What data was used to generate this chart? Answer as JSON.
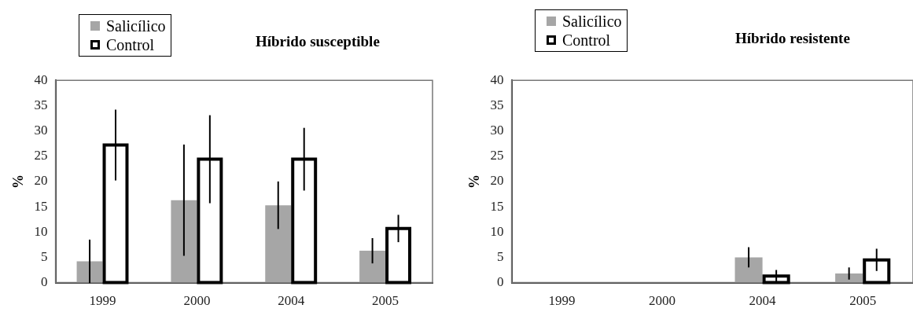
{
  "chart_data": [
    {
      "type": "bar",
      "title": "Híbrido susceptible",
      "ylabel": "%",
      "categories": [
        "1999",
        "2000",
        "2004",
        "2005"
      ],
      "ylim": [
        0,
        40
      ],
      "yticks": [
        0,
        5,
        10,
        15,
        20,
        25,
        30,
        35,
        40
      ],
      "grid": false,
      "legend": "top left",
      "series": [
        {
          "name": "Salicílico",
          "color": "#a6a6a6",
          "values": [
            4.2,
            16.3,
            15.3,
            6.3
          ],
          "errors": [
            4.3,
            11,
            4.7,
            2.5
          ]
        },
        {
          "name": "Control",
          "color": "#000000",
          "values": [
            27.2,
            24.4,
            24.4,
            10.7
          ],
          "errors": [
            7,
            8.7,
            6.2,
            2.7
          ]
        }
      ]
    },
    {
      "type": "bar",
      "title": "Híbrido resistente",
      "ylabel": "%",
      "categories": [
        "1999",
        "2000",
        "2004",
        "2005"
      ],
      "ylim": [
        0,
        40
      ],
      "yticks": [
        0,
        5,
        10,
        15,
        20,
        25,
        30,
        35,
        40
      ],
      "grid": false,
      "legend": "top left",
      "series": [
        {
          "name": "Salicílico",
          "color": "#a6a6a6",
          "values": [
            0,
            0,
            5,
            1.8
          ],
          "errors": [
            null,
            null,
            2,
            1.2
          ]
        },
        {
          "name": "Control",
          "color": "#000000",
          "values": [
            0,
            0,
            1.3,
            4.5
          ],
          "errors": [
            null,
            null,
            1.2,
            2.2
          ]
        }
      ]
    }
  ]
}
